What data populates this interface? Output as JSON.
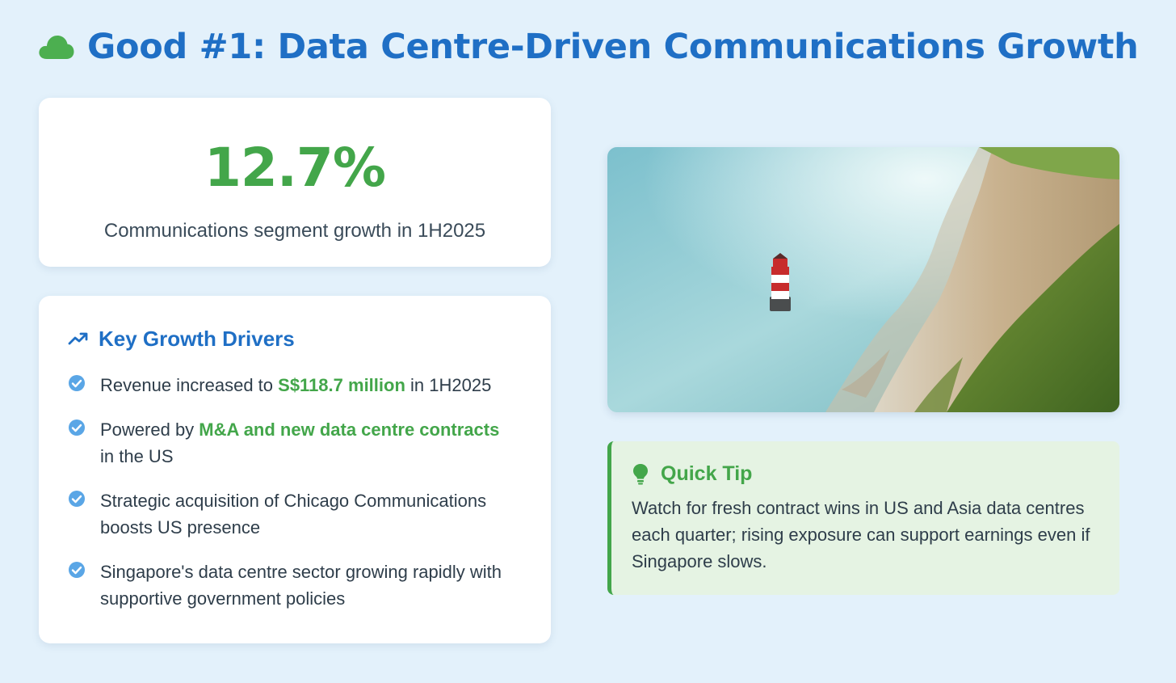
{
  "header": {
    "icon": "cloud-icon",
    "title": "Good #1: Data Centre-Driven Communications Growth"
  },
  "stat": {
    "value": "12.7%",
    "caption": "Communications segment growth in 1H2025"
  },
  "drivers": {
    "icon": "trending-up-icon",
    "title": "Key Growth Drivers",
    "items": [
      {
        "before": "Revenue increased to ",
        "highlight": "S$118.7 million",
        "after": " in 1H2025"
      },
      {
        "before": "Powered by ",
        "highlight": "M&A and new data centre contracts",
        "after": " in the US"
      },
      {
        "before": "Strategic acquisition of Chicago Communications boosts US presence",
        "highlight": "",
        "after": ""
      },
      {
        "before": "Singapore's data centre sector growing rapidly with supportive government policies",
        "highlight": "",
        "after": ""
      }
    ]
  },
  "tip": {
    "icon": "lightbulb-icon",
    "title": "Quick Tip",
    "body": "Watch for fresh contract wins in US and Asia data centres each quarter; rising exposure can support earnings even if Singapore slows."
  },
  "colors": {
    "background": "#e3f1fb",
    "title_blue": "#1f6fc5",
    "accent_green": "#43a64a",
    "tip_background": "#e5f3e3",
    "check_blue": "#5aa6e6"
  }
}
